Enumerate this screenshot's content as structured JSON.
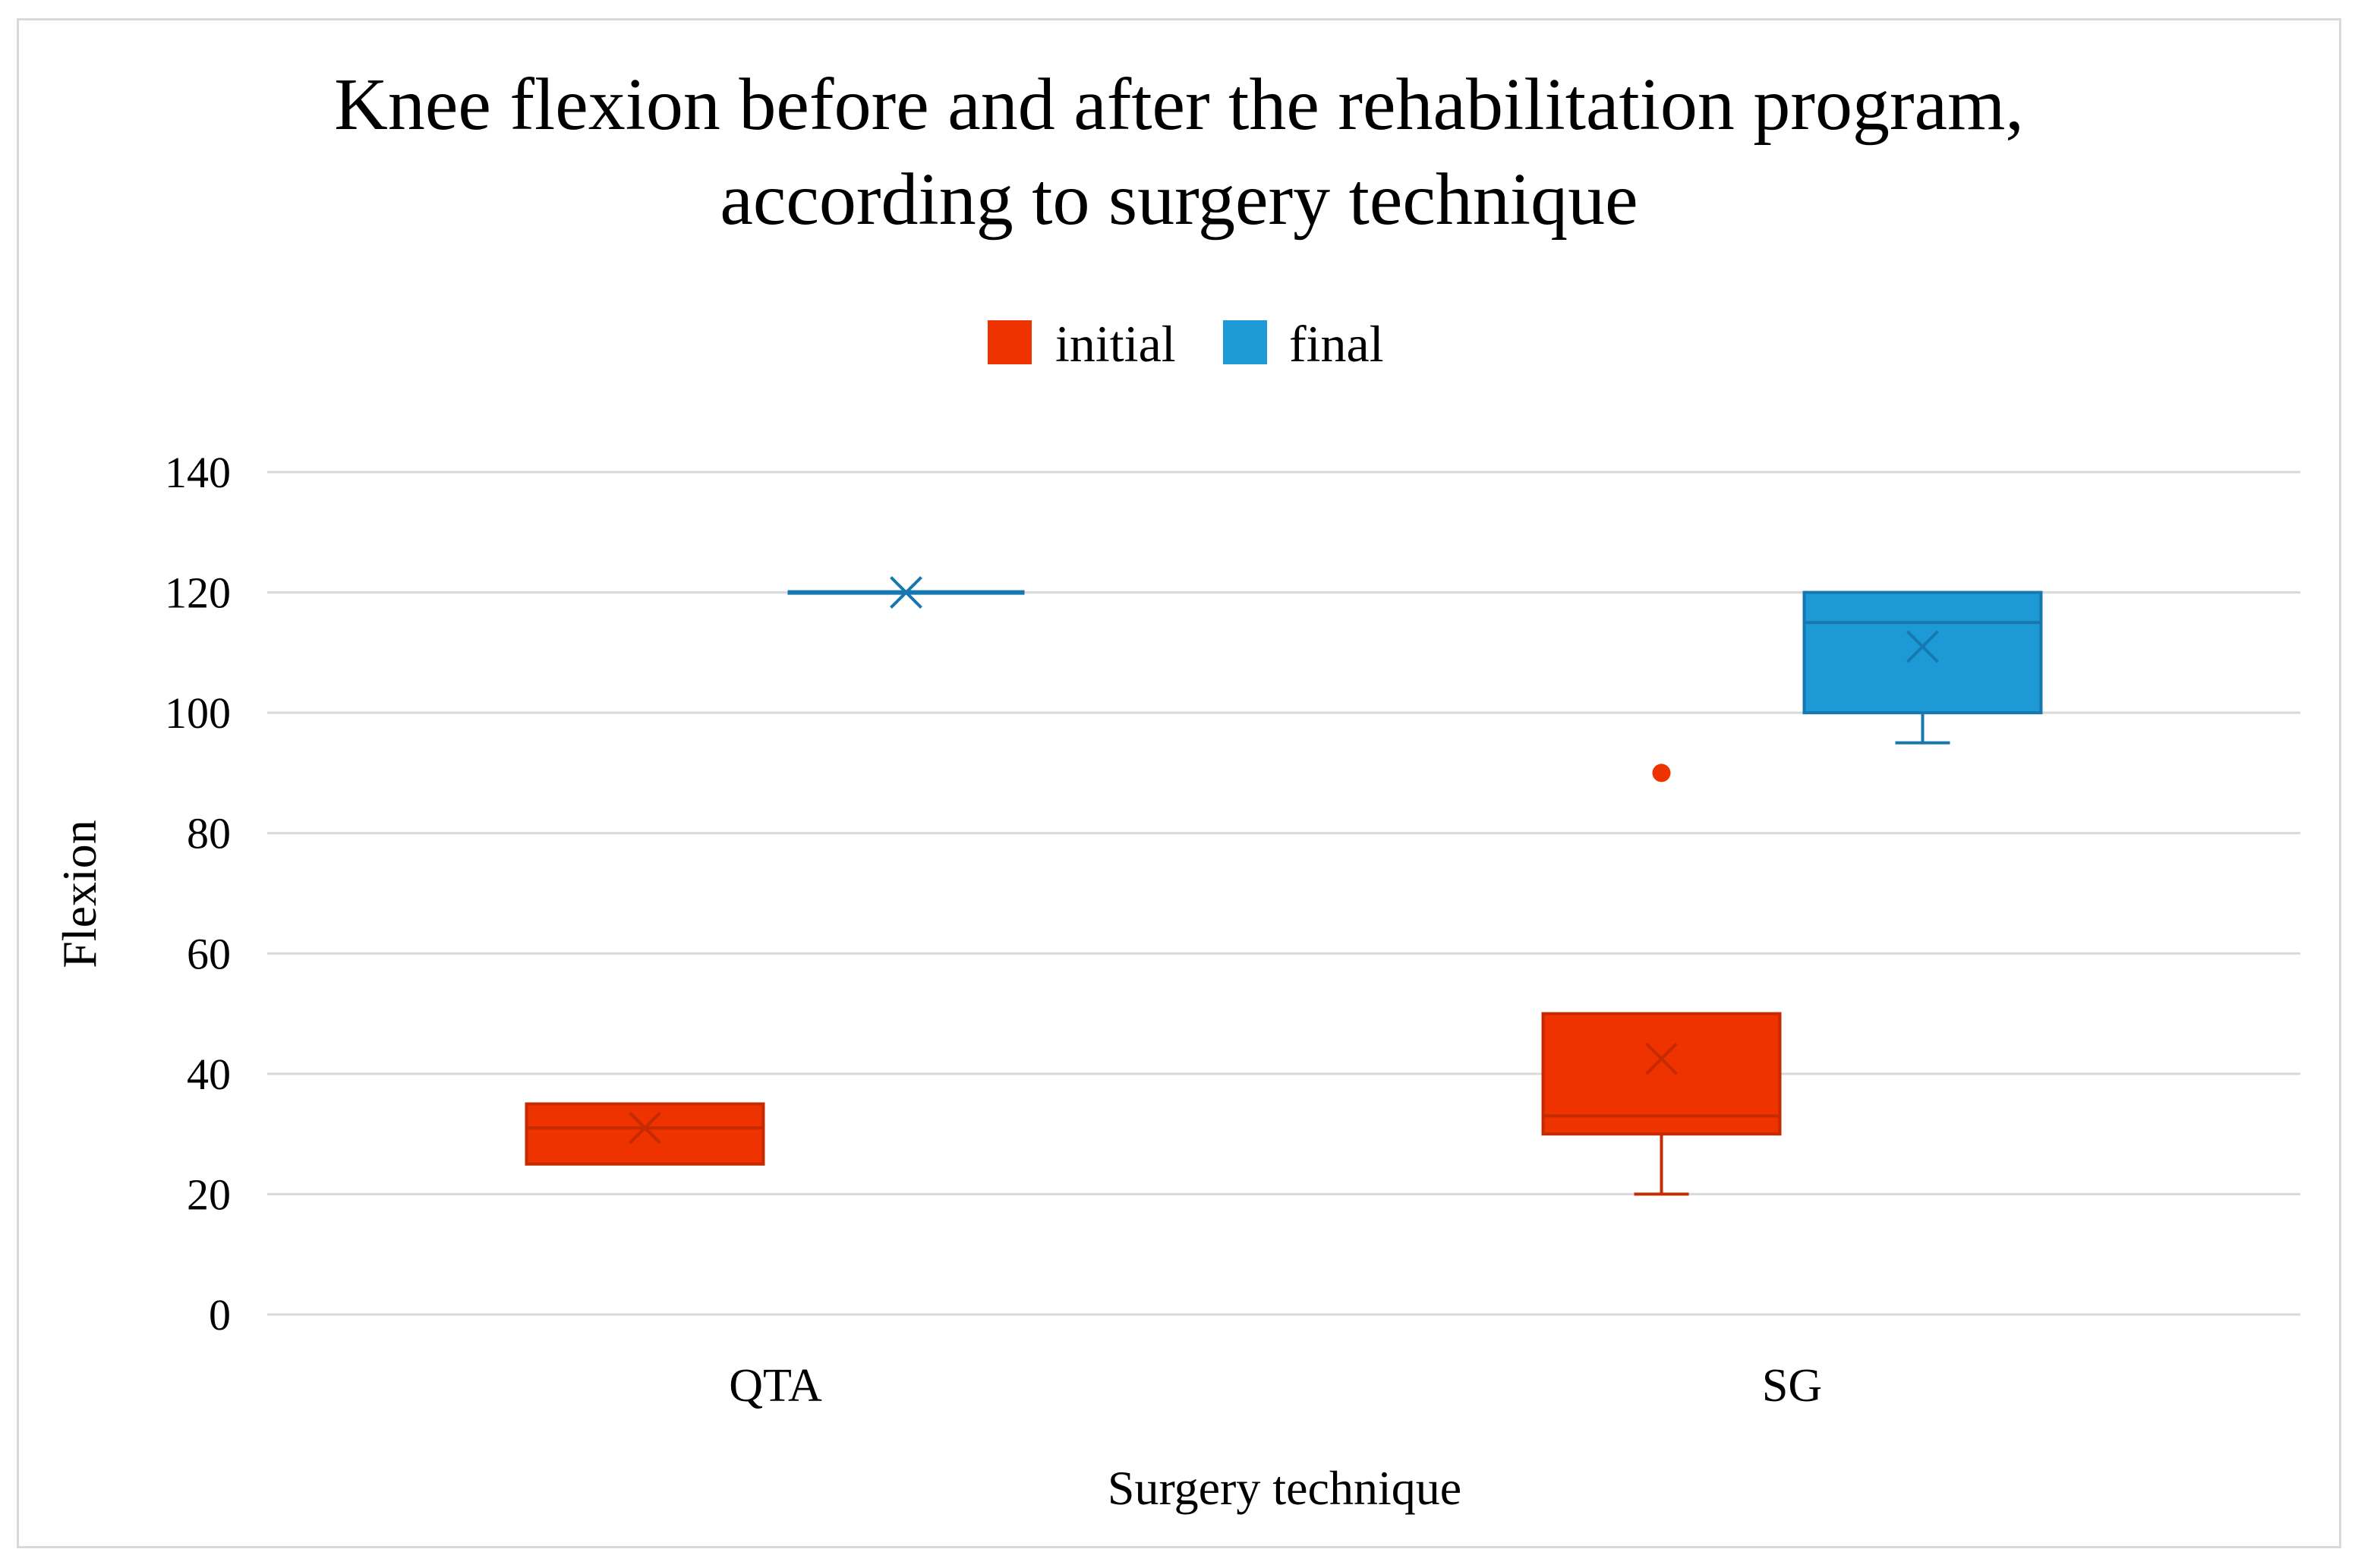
{
  "chart_data": {
    "type": "box",
    "title_lines": [
      "Knee flexion before and after the rehabilitation program,",
      "according to surgery technique"
    ],
    "xlabel": "Surgery technique",
    "ylabel": "Flexion",
    "ylim": [
      0,
      140
    ],
    "yticks": [
      0,
      20,
      40,
      60,
      80,
      100,
      120,
      140
    ],
    "grid": true,
    "legend_position": "top-center",
    "categories": [
      "QTA",
      "SG"
    ],
    "series": [
      {
        "name": "initial",
        "color": "#ee3300",
        "boxes": [
          {
            "category": "QTA",
            "min": 25,
            "q1": 25,
            "median": 31,
            "q3": 35,
            "max": 35,
            "mean": 31,
            "outliers": []
          },
          {
            "category": "SG",
            "min": 20,
            "q1": 30,
            "median": 33,
            "q3": 50,
            "max": 50,
            "mean": 42.5,
            "outliers": [
              90
            ]
          }
        ]
      },
      {
        "name": "final",
        "color": "#1d9ad6",
        "boxes": [
          {
            "category": "QTA",
            "min": 120,
            "q1": 120,
            "median": 120,
            "q3": 120,
            "max": 120,
            "mean": 120,
            "outliers": []
          },
          {
            "category": "SG",
            "min": 95,
            "q1": 100,
            "median": 115,
            "q3": 120,
            "max": 120,
            "mean": 111,
            "outliers": []
          }
        ]
      }
    ]
  }
}
